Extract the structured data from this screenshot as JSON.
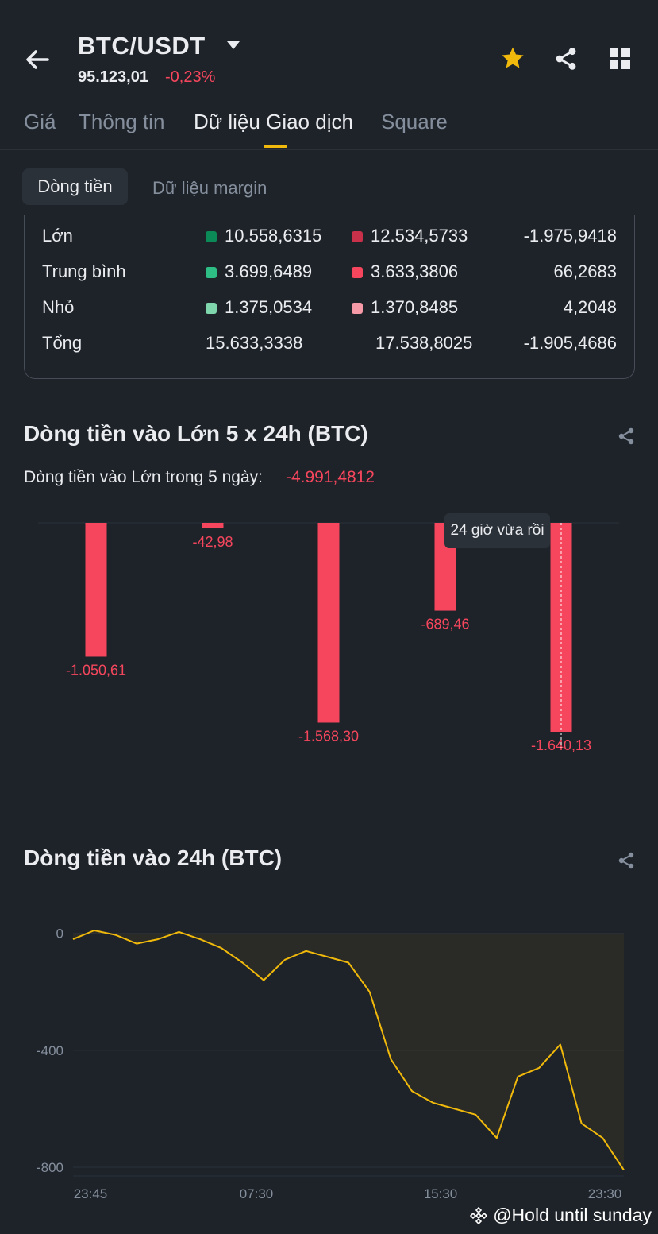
{
  "header": {
    "pair": "BTC/USDT",
    "price": "95.123,01",
    "change": "-0,23%"
  },
  "tabs": [
    "Giá",
    "Thông tin",
    "Dữ liệu Giao dịch",
    "Square"
  ],
  "subtabs": [
    "Dòng tiền",
    "Dữ liệu margin"
  ],
  "flow_table": {
    "rows": [
      {
        "label": "Lớn",
        "buy": "10.558,6315",
        "sell": "12.534,5733",
        "net": "-1.975,9418",
        "buy_color": "#0b8a57",
        "sell_color": "#c9304a"
      },
      {
        "label": "Trung bình",
        "buy": "3.699,6489",
        "sell": "3.633,3806",
        "net": "66,2683",
        "buy_color": "#2ebd85",
        "sell_color": "#f6465d"
      },
      {
        "label": "Nhỏ",
        "buy": "1.375,0534",
        "sell": "1.370,8485",
        "net": "4,2048",
        "buy_color": "#7fd6ad",
        "sell_color": "#f59aa6"
      },
      {
        "label": "Tổng",
        "buy": "15.633,3338",
        "sell": "17.538,8025",
        "net": "-1.905,4686"
      }
    ]
  },
  "big_flow": {
    "title": "Dòng tiền vào Lớn 5 x 24h (BTC)",
    "summary_label": "Dòng tiền vào Lớn trong 5 ngày:",
    "summary_value": "-4.991,4812",
    "tooltip": "24 giờ vừa rồi"
  },
  "flow24": {
    "title": "Dòng tiền vào 24h (BTC)"
  },
  "watermark": "@Hold until sunday",
  "colors": {
    "background": "#1e2329",
    "accent": "#f0b90b",
    "negative": "#f6465d",
    "positive": "#2ebd85"
  },
  "chart_data": [
    {
      "type": "bar",
      "categories": [
        "1",
        "2",
        "3",
        "4",
        "5"
      ],
      "values": [
        -1050.61,
        -42.98,
        -1568.3,
        -689.46,
        -1640.13
      ],
      "value_labels": [
        "-1.050,61",
        "-42,98",
        "-1.568,30",
        "-689,46",
        "-1.640,13"
      ],
      "title": "Dòng tiền vào Lớn 5 x 24h (BTC)",
      "ylim": [
        -1640.13,
        0
      ]
    },
    {
      "type": "line",
      "title": "Dòng tiền vào 24h (BTC)",
      "x": [
        "23:45",
        "00:40",
        "01:35",
        "02:30",
        "03:25",
        "04:20",
        "05:15",
        "06:10",
        "07:05",
        "08:00",
        "08:55",
        "09:50",
        "10:45",
        "11:40",
        "12:35",
        "13:30",
        "14:25",
        "15:20",
        "16:15",
        "17:10",
        "18:05",
        "19:00",
        "20:05",
        "21:00",
        "22:00",
        "23:00",
        "23:50"
      ],
      "y": [
        -20,
        10,
        -5,
        -35,
        -20,
        5,
        -20,
        -50,
        -100,
        -160,
        -90,
        -60,
        -80,
        -100,
        -200,
        -430,
        -540,
        -580,
        -600,
        -620,
        -700,
        -490,
        -460,
        -380,
        -650,
        -700,
        -810
      ],
      "x_ticks": [
        "23:45",
        "07:30",
        "15:30",
        "23:30"
      ],
      "y_ticks": [
        "0",
        "-400",
        "-800"
      ],
      "ylim": [
        -830,
        40
      ]
    }
  ]
}
